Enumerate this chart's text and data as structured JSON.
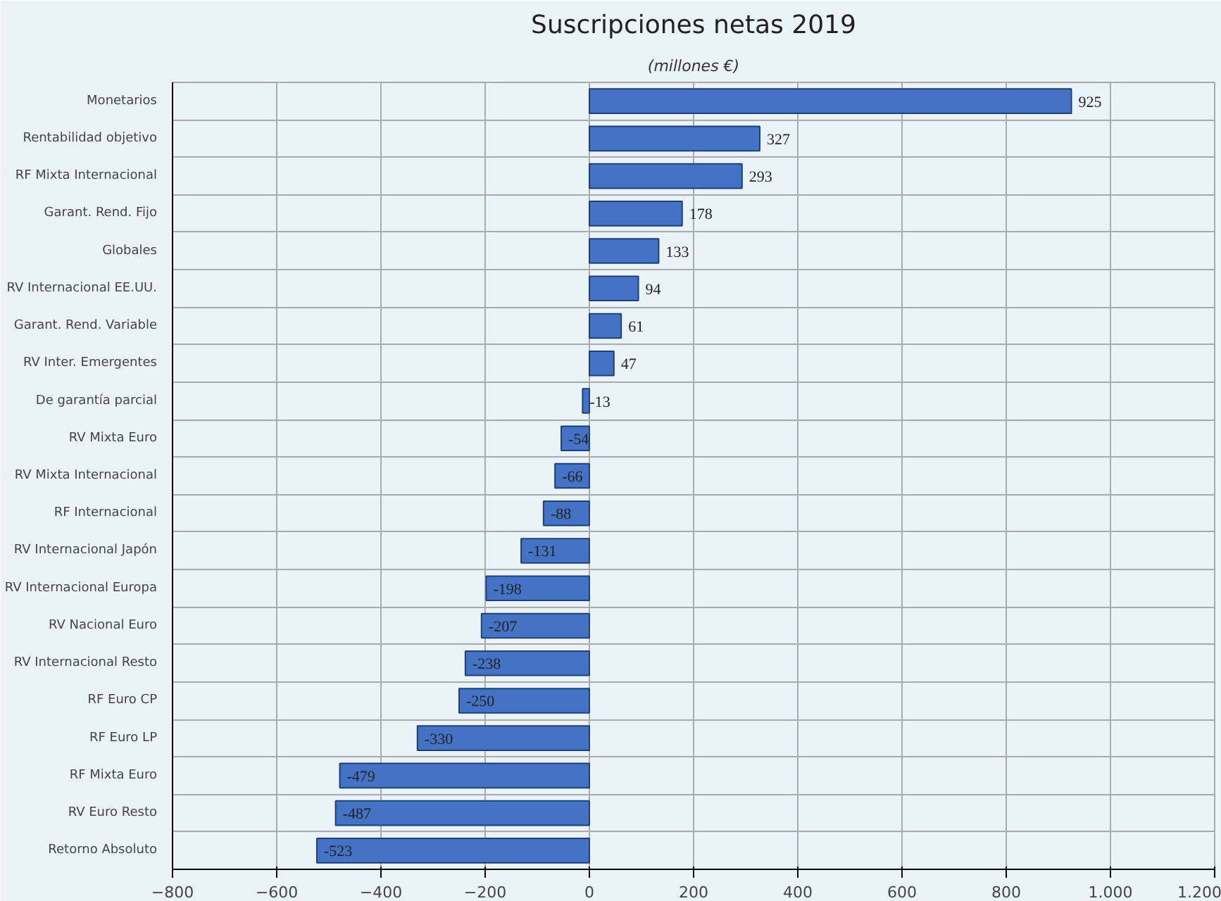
{
  "chart_data": {
    "type": "bar",
    "orientation": "horizontal",
    "title": "Suscripciones netas 2019",
    "subtitle": "(millones €)",
    "categories": [
      "Monetarios",
      "Rentabilidad objetivo",
      "RF Mixta Internacional",
      "Garant. Rend. Fijo",
      "Globales",
      "RV Internacional EE.UU.",
      "Garant. Rend. Variable",
      "RV Inter. Emergentes",
      "De garantía parcial",
      "RV Mixta Euro",
      "RV Mixta Internacional",
      "RF Internacional",
      "RV Internacional Japón",
      "RV Internacional Europa",
      "RV Nacional Euro",
      "RV Internacional Resto",
      "RF Euro CP",
      "RF Euro LP",
      "RF Mixta Euro",
      "RV Euro Resto",
      "Retorno Absoluto"
    ],
    "values": [
      925,
      327,
      293,
      178,
      133,
      94,
      61,
      47,
      -13,
      -54,
      -66,
      -88,
      -131,
      -198,
      -207,
      -238,
      -250,
      -330,
      -479,
      -487,
      -523
    ],
    "color": "#4472c4",
    "data_labels": true,
    "grid": true,
    "xlim": [
      -800,
      1200
    ],
    "xticks": [
      -800,
      -600,
      -400,
      -200,
      0,
      200,
      400,
      600,
      800,
      {
        "value": 1000,
        "label": "1.000"
      },
      {
        "value": 1200,
        "label": "1.200"
      }
    ]
  }
}
